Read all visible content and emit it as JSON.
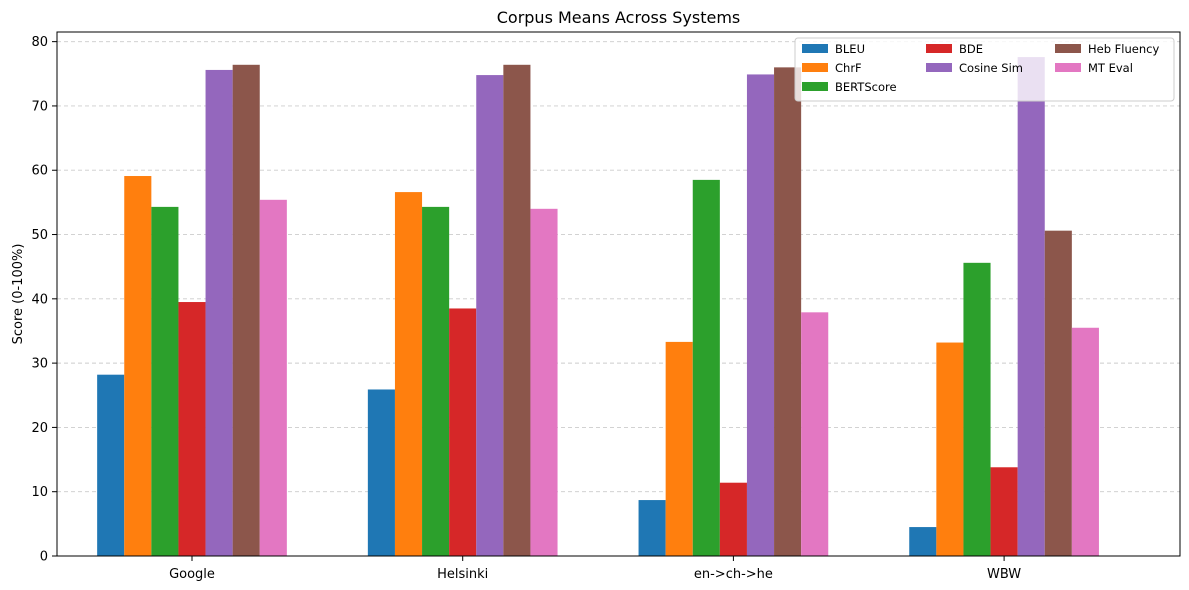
{
  "chart_data": {
    "type": "bar",
    "title": "Corpus Means Across Systems",
    "xlabel": "",
    "ylabel": "Score (0-100%)",
    "ylim": [
      0,
      81.5
    ],
    "yticks": [
      0,
      10,
      20,
      30,
      40,
      50,
      60,
      70,
      80
    ],
    "grid": "horizontal dashed",
    "legend_position": "top-right",
    "legend_columns": 3,
    "categories": [
      "Google",
      "Helsinki",
      "en->ch->he",
      "WBW"
    ],
    "series": [
      {
        "name": "BLEU",
        "color": "#1f77b4",
        "values": [
          28.2,
          25.9,
          8.7,
          4.5
        ]
      },
      {
        "name": "ChrF",
        "color": "#ff7f0e",
        "values": [
          59.1,
          56.6,
          33.3,
          33.2
        ]
      },
      {
        "name": "BERTScore",
        "color": "#2ca02c",
        "values": [
          54.3,
          54.3,
          58.5,
          45.6
        ]
      },
      {
        "name": "BDE",
        "color": "#d62728",
        "values": [
          39.5,
          38.5,
          11.4,
          13.8
        ]
      },
      {
        "name": "Cosine Sim",
        "color": "#9467bd",
        "values": [
          75.6,
          74.8,
          74.9,
          77.6
        ]
      },
      {
        "name": "Heb Fluency",
        "color": "#8c564b",
        "values": [
          76.4,
          76.4,
          76.0,
          50.6
        ]
      },
      {
        "name": "MT Eval",
        "color": "#e377c2",
        "values": [
          55.4,
          54.0,
          37.9,
          35.5
        ]
      }
    ]
  }
}
